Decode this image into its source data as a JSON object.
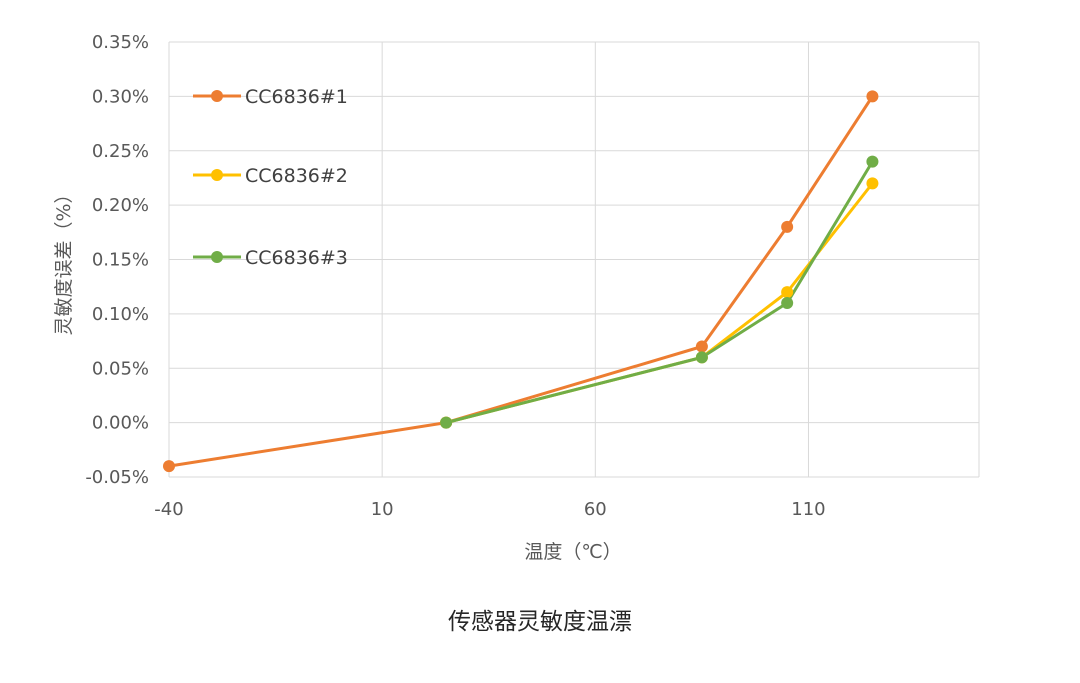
{
  "caption": "传感器灵敏度温漂",
  "chart_data": {
    "type": "line",
    "title": "",
    "xlabel": "温度（℃）",
    "ylabel": "灵敏度误差（%）",
    "xlim": [
      -40,
      150
    ],
    "ylim": [
      -0.05,
      0.35
    ],
    "xticks": [
      -40,
      10,
      60,
      110
    ],
    "xtick_labels": [
      "-40",
      "10",
      "60",
      "110"
    ],
    "yticks": [
      -0.05,
      0.0,
      0.05,
      0.1,
      0.15,
      0.2,
      0.25,
      0.3,
      0.35
    ],
    "ytick_labels": [
      "-0.05%",
      "0.00%",
      "0.05%",
      "0.10%",
      "0.15%",
      "0.20%",
      "0.25%",
      "0.30%",
      "0.35%"
    ],
    "grid": true,
    "legend_position": "top-left",
    "series": [
      {
        "name": "CC6836#1",
        "color": "#ED7D31",
        "x": [
          -40,
          25,
          85,
          105,
          125
        ],
        "y": [
          -0.04,
          0.0,
          0.07,
          0.18,
          0.3
        ]
      },
      {
        "name": "CC6836#2",
        "color": "#FFC000",
        "x": [
          25,
          85,
          105,
          125
        ],
        "y": [
          0.0,
          0.06,
          0.12,
          0.22
        ]
      },
      {
        "name": "CC6836#3",
        "color": "#70AD47",
        "x": [
          25,
          85,
          105,
          125
        ],
        "y": [
          0.0,
          0.06,
          0.11,
          0.24
        ]
      }
    ]
  }
}
